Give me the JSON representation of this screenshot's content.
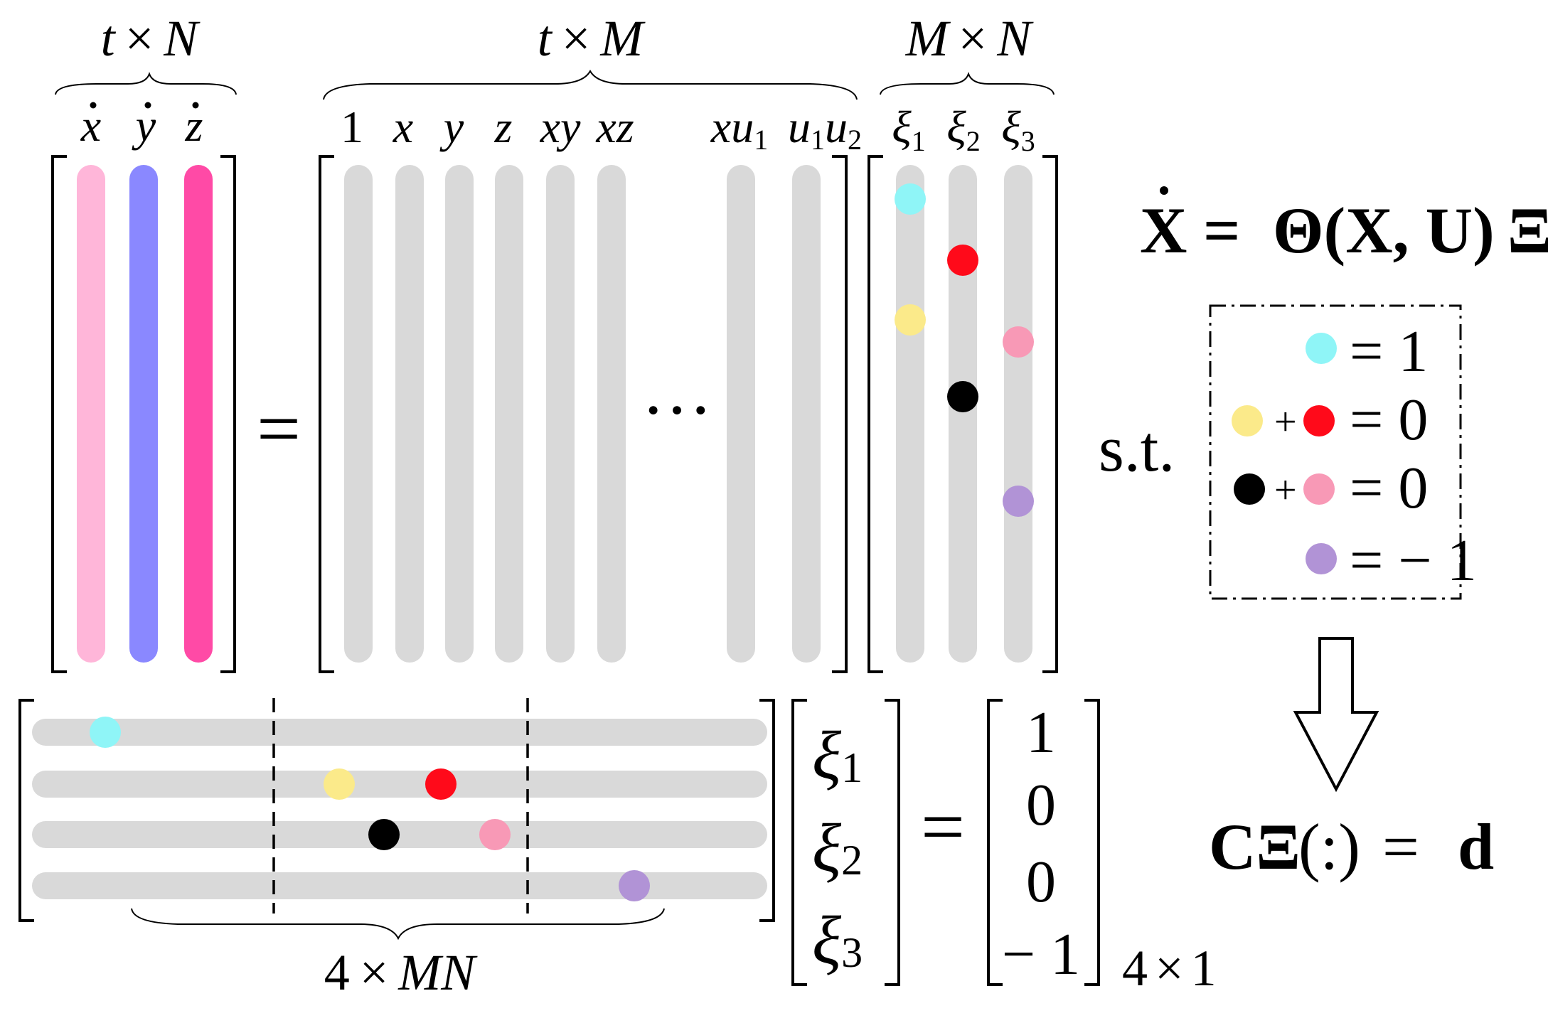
{
  "top": {
    "lhs": {
      "dim": {
        "a": "t",
        "op": "×",
        "b": "N"
      },
      "cols": [
        {
          "sym": "x",
          "color": "#ffb6d9"
        },
        {
          "sym": "y",
          "color": "#8a88ff"
        },
        {
          "sym": "z",
          "color": "#ff4aa6"
        }
      ]
    },
    "equals": "=",
    "library": {
      "dim": {
        "a": "t",
        "op": "×",
        "b": "M"
      },
      "labels": [
        {
          "base": "1",
          "sub": ""
        },
        {
          "base": "x",
          "sub": ""
        },
        {
          "base": "y",
          "sub": ""
        },
        {
          "base": "z",
          "sub": ""
        },
        {
          "base": "xy",
          "sub": ""
        },
        {
          "base": "xz",
          "sub": ""
        },
        {
          "base": "xu",
          "sub": "1"
        },
        {
          "base": "u",
          "sub": "1",
          "base2": "u",
          "sub2": "2"
        }
      ],
      "ellipsis": "···"
    },
    "coef": {
      "dim": {
        "a": "M",
        "op": "×",
        "b": "N"
      },
      "labels": [
        {
          "sym": "ξ",
          "sub": "1"
        },
        {
          "sym": "ξ",
          "sub": "2"
        },
        {
          "sym": "ξ",
          "sub": "3"
        }
      ]
    }
  },
  "equation": {
    "lhs": "X",
    "rhs_theta": "Θ(X, U)",
    "rhs_xi": "Ξ"
  },
  "constraints": {
    "prefix": "s.t.",
    "rows": [
      {
        "terms": [
          "cyan"
        ],
        "rhs": "= 1"
      },
      {
        "terms": [
          "yellow",
          "red"
        ],
        "rhs": "= 0"
      },
      {
        "terms": [
          "black",
          "pink"
        ],
        "rhs": "= 0"
      },
      {
        "terms": [
          "purple"
        ],
        "rhs": "= − 1"
      }
    ],
    "plus": "+"
  },
  "result": {
    "c": "CΞ",
    "colon": "(:)",
    "equals": "=",
    "d": "d"
  },
  "bottom": {
    "dim": {
      "a": "4",
      "op": "×",
      "b": "MN"
    },
    "xi": [
      {
        "sym": "ξ",
        "sub": "1"
      },
      {
        "sym": "ξ",
        "sub": "2"
      },
      {
        "sym": "ξ",
        "sub": "3"
      }
    ],
    "equals": "=",
    "d_values": [
      "1",
      "0",
      "0",
      "− 1"
    ],
    "d_dim": {
      "a": "4",
      "op": "×",
      "b": "1"
    }
  },
  "colors": {
    "cyan": "#8ff5f7",
    "red": "#ff0a1a",
    "yellow": "#fbea8a",
    "black": "#000000",
    "pink": "#f899b6",
    "purple": "#b193d6",
    "bar": "#d9d9d9"
  }
}
